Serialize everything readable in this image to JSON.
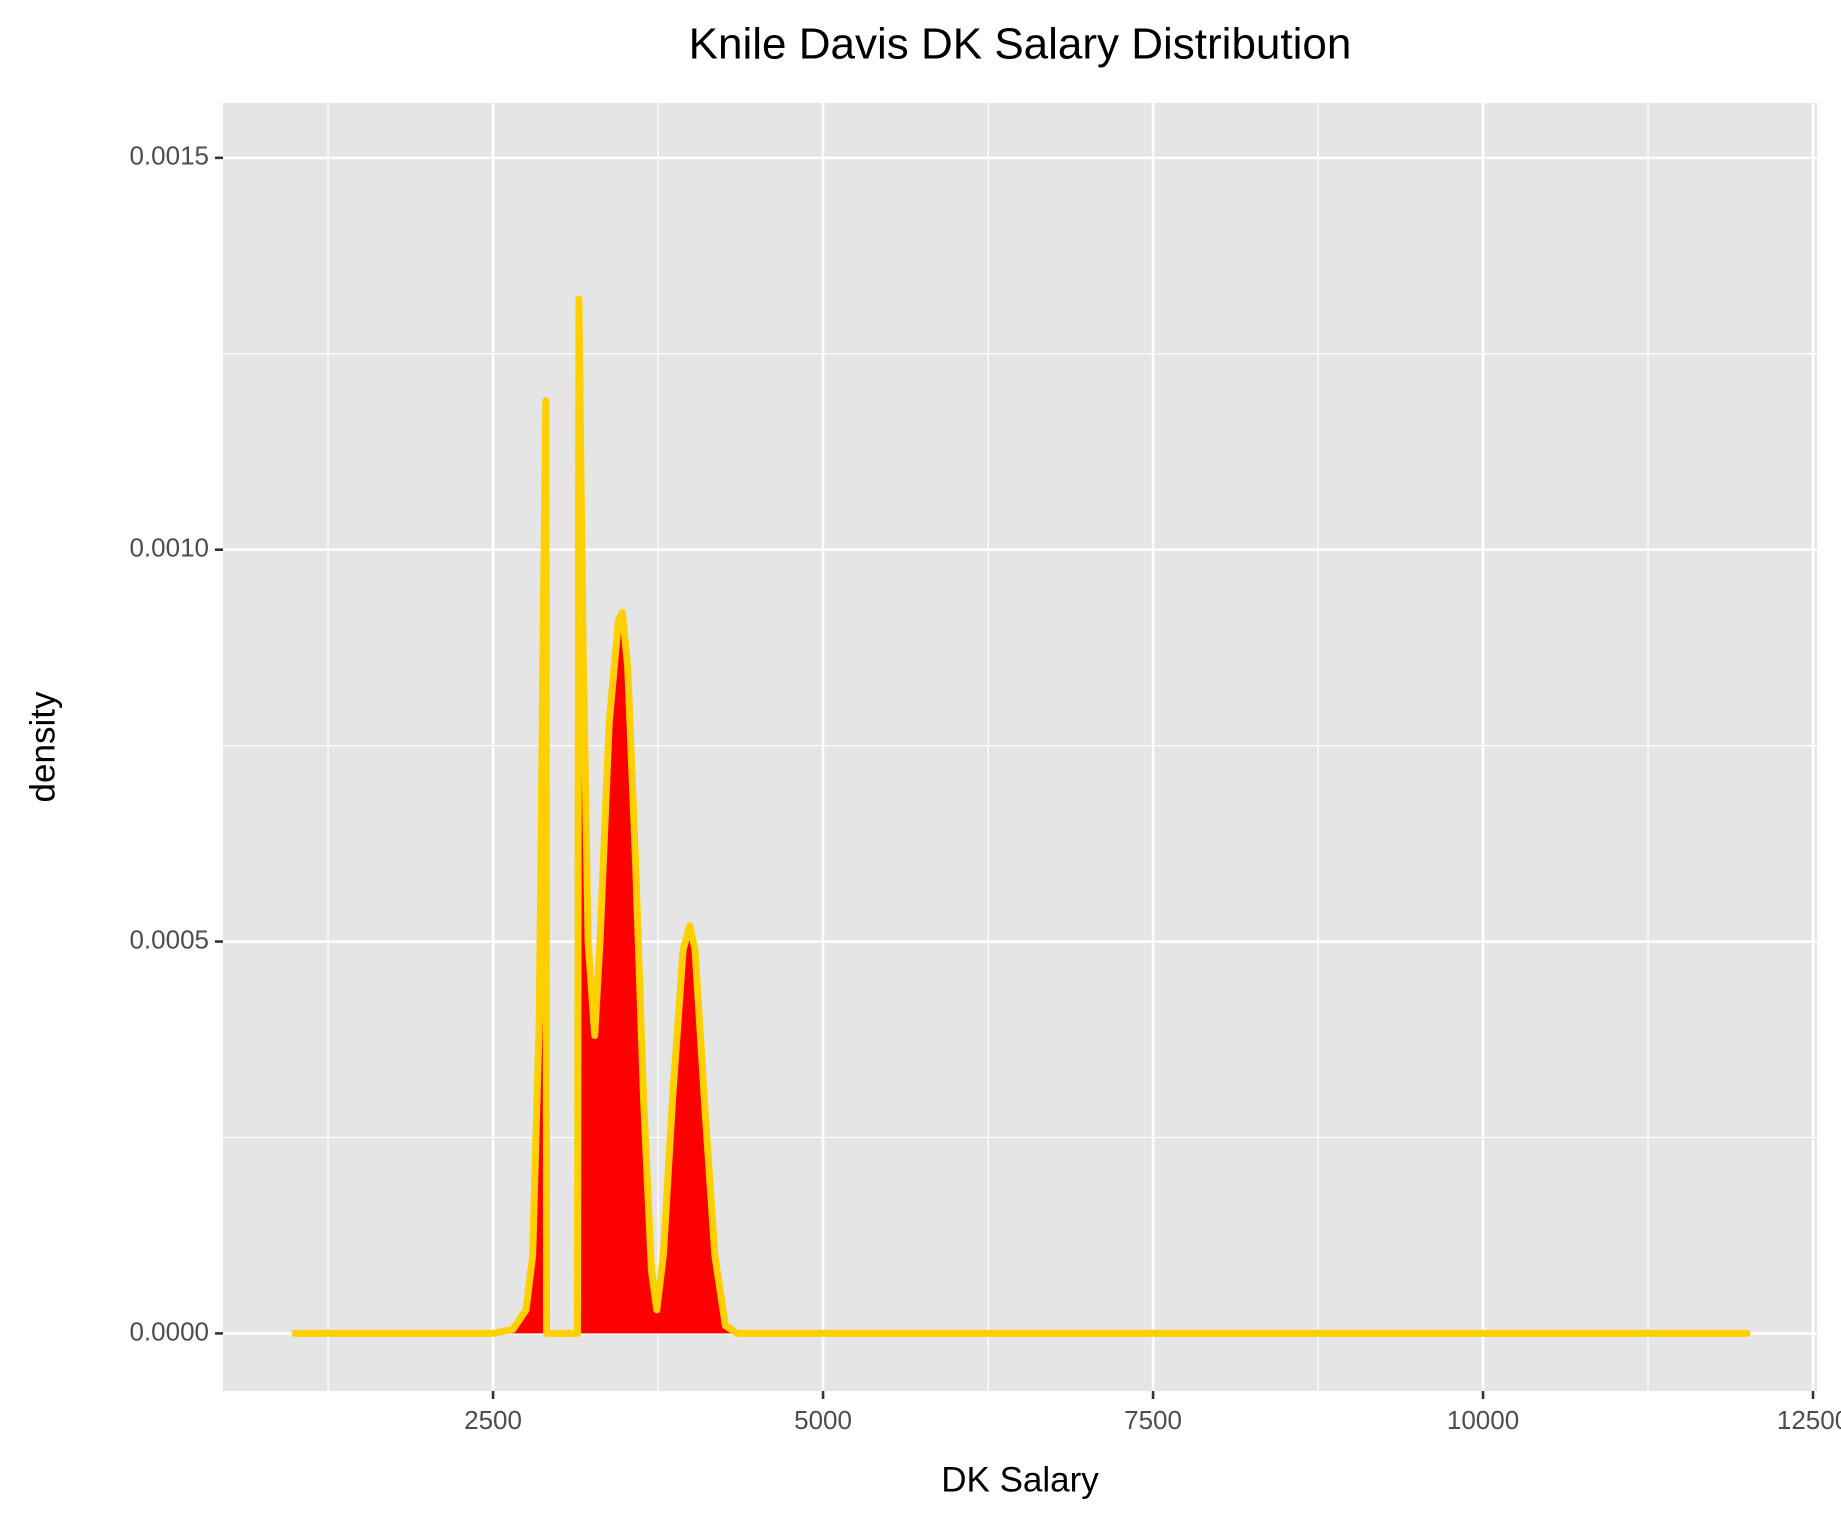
{
  "chart_data": {
    "type": "area",
    "title": "Knile Davis DK Salary Distribution",
    "x_label": "DK Salary",
    "y_label": "density",
    "x": [
      1000,
      2500,
      2650,
      2750,
      2800,
      2850,
      2880,
      2900,
      2905,
      3140,
      3150,
      3180,
      3220,
      3270,
      3310,
      3380,
      3450,
      3480,
      3520,
      3580,
      3640,
      3700,
      3740,
      3790,
      3860,
      3940,
      3990,
      4030,
      4100,
      4180,
      4260,
      4350,
      12000
    ],
    "values": [
      0,
      0,
      5e-06,
      3e-05,
      0.0001,
      0.0004,
      0.0009,
      0.00119,
      0,
      0,
      0.00132,
      0.0009,
      0.0005,
      0.00038,
      0.0005,
      0.00078,
      0.00091,
      0.00092,
      0.00085,
      0.0006,
      0.0003,
      8e-05,
      3e-05,
      0.0001,
      0.0003,
      0.00049,
      0.00052,
      0.00049,
      0.0003,
      0.0001,
      1e-05,
      0,
      0
    ],
    "fill_color": "#ff0000",
    "line_color": "#ffd000",
    "xlim": [
      454,
      12530
    ],
    "ylim": [
      -7.35e-05,
      0.00157
    ],
    "xticks": [
      2500,
      5000,
      7500,
      10000,
      12500
    ],
    "yticks": [
      {
        "value": 0,
        "label": "0.0000"
      },
      {
        "value": 0.0005,
        "label": "0.0005"
      },
      {
        "value": 0.001,
        "label": "0.0010"
      },
      {
        "value": 0.0015,
        "label": "0.0015"
      }
    ],
    "x_minor_ticks": [
      1250,
      3750,
      6250,
      8750,
      11250
    ],
    "y_minor_ticks": [
      0.00025,
      0.00075,
      0.00125
    ],
    "grid": true
  }
}
